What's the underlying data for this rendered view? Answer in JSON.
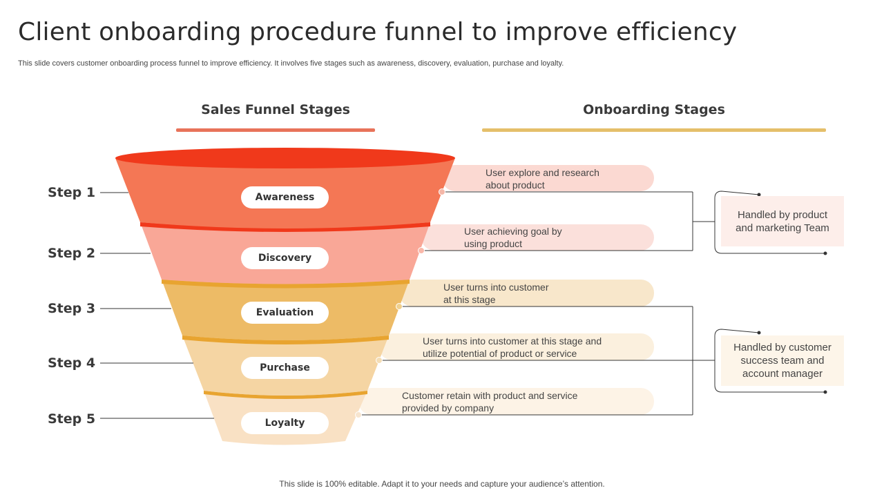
{
  "title": "Client onboarding procedure funnel to improve efficiency",
  "subtitle": "This slide covers customer onboarding process funnel to improve efficiency. It involves five stages such as awareness, discovery, evaluation, purchase and loyalty.",
  "columns": {
    "left": "Sales Funnel Stages",
    "right": "Onboarding Stages",
    "left_color": "#E8735A",
    "right_color": "#E5BF6A"
  },
  "stages": [
    {
      "step": "Step 1",
      "name": "Awareness",
      "description_lines": [
        "User explore and research",
        "about product"
      ],
      "fill": "#F47755",
      "band": "#FBD9D2"
    },
    {
      "step": "Step 2",
      "name": "Discovery",
      "description_lines": [
        "User achieving goal by",
        "using product"
      ],
      "fill": "#F9A797",
      "band": "#FBE0DB"
    },
    {
      "step": "Step 3",
      "name": "Evaluation",
      "description_lines": [
        "User turns into customer",
        "at this stage"
      ],
      "fill": "#EDBB66",
      "band": "#F8E7CB"
    },
    {
      "step": "Step 4",
      "name": "Purchase",
      "description_lines": [
        "User turns into customer at this stage and",
        "utilize potential of product or service"
      ],
      "fill": "#F5D5A3",
      "band": "#FBF0DE"
    },
    {
      "step": "Step 5",
      "name": "Loyalty",
      "description_lines": [
        "Customer retain with product and service",
        "provided by company"
      ],
      "fill": "#F9E1C4",
      "band": "#FDF3E6"
    }
  ],
  "handled": [
    {
      "lines": [
        "Handled by product",
        "and marketing Team"
      ],
      "bg": "#FDEEEA"
    },
    {
      "lines": [
        "Handled by customer",
        "success team and",
        "account manager"
      ],
      "bg": "#FDF5E9"
    }
  ],
  "footer": "This slide is 100% editable. Adapt it to your needs and capture your audience’s attention."
}
